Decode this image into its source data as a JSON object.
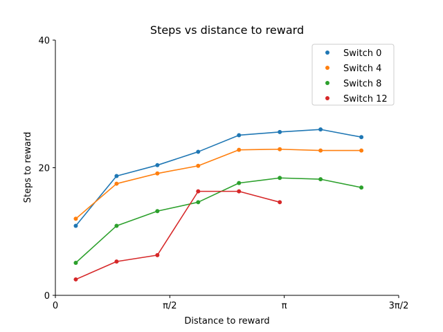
{
  "chart_data": {
    "type": "line",
    "title": "Steps vs distance to reward",
    "xlabel": "Distance to reward",
    "ylabel": "Steps to reward",
    "xlim": [
      0,
      4.712389
    ],
    "ylim": [
      0,
      40
    ],
    "xticks": [
      {
        "value": 0,
        "label": "0"
      },
      {
        "value": 1.570796,
        "label": "π/2"
      },
      {
        "value": 3.141593,
        "label": "π"
      },
      {
        "value": 4.712389,
        "label": "3π/2"
      }
    ],
    "yticks": [
      {
        "value": 0,
        "label": "0"
      },
      {
        "value": 20,
        "label": "20"
      },
      {
        "value": 40,
        "label": "40"
      }
    ],
    "grid": false,
    "legend_position": "top-right",
    "series": [
      {
        "name": "Switch 0",
        "color": "#1f77b4",
        "x": [
          0.28,
          0.84,
          1.4,
          1.96,
          2.52,
          3.08,
          3.64,
          4.2
        ],
        "y": [
          10.9,
          18.7,
          20.4,
          22.5,
          25.1,
          25.6,
          26.0,
          24.8
        ]
      },
      {
        "name": "Switch 4",
        "color": "#ff7f0e",
        "x": [
          0.28,
          0.84,
          1.4,
          1.96,
          2.52,
          3.08,
          3.64,
          4.2
        ],
        "y": [
          12.0,
          17.5,
          19.1,
          20.3,
          22.8,
          22.9,
          22.7,
          22.7
        ]
      },
      {
        "name": "Switch 8",
        "color": "#2ca02c",
        "x": [
          0.28,
          0.84,
          1.4,
          1.96,
          2.52,
          3.08,
          3.64,
          4.2
        ],
        "y": [
          5.1,
          10.9,
          13.2,
          14.6,
          17.6,
          18.4,
          18.2,
          16.9
        ]
      },
      {
        "name": "Switch 12",
        "color": "#d62728",
        "x": [
          0.28,
          0.84,
          1.4,
          1.96,
          2.52,
          3.08
        ],
        "y": [
          2.5,
          5.3,
          6.3,
          16.3,
          16.3,
          14.6
        ]
      }
    ]
  }
}
